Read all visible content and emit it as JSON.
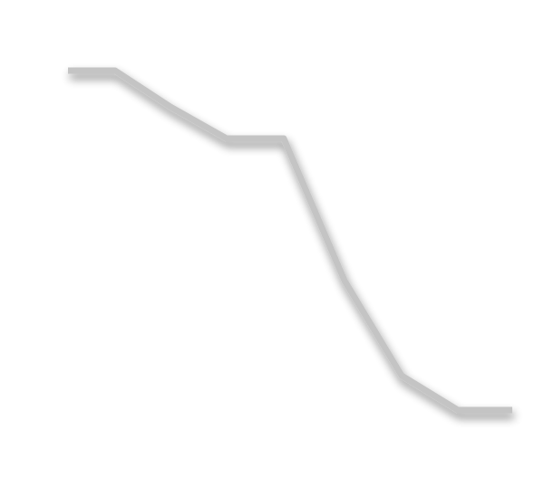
{
  "graphic": {
    "description_type": "line-icon",
    "stroke_color": "#c4c4c4",
    "shadow_color": "#000000",
    "shadow_opacity": 0.35,
    "background_color": "#ffffff",
    "vertex_count": 9
  }
}
